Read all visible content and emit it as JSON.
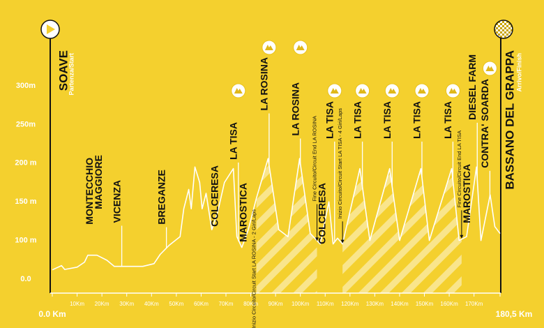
{
  "chart_data": {
    "type": "line",
    "color": "#ffffff",
    "x": [
      0,
      3.7,
      5,
      10,
      13,
      14.3,
      18,
      22,
      25,
      36.5,
      41,
      43.5,
      47,
      51.5,
      53,
      55,
      56,
      57.5,
      59.4,
      60.4,
      62,
      64.3,
      66.6,
      69.4,
      73,
      74.4,
      76.4,
      79,
      82.3,
      87,
      91.3,
      95,
      99.7,
      104,
      108,
      111.5,
      113.2,
      115,
      117,
      124,
      128,
      136,
      140,
      148.6,
      152,
      161,
      164,
      167,
      171,
      172.8,
      176.5,
      178.4,
      180.5
    ],
    "values": [
      24,
      35,
      25,
      31,
      44,
      62,
      62,
      49,
      33,
      33,
      40,
      64,
      87,
      105,
      141,
      166,
      141,
      195,
      175,
      141,
      161,
      114,
      136,
      175,
      193,
      105,
      82,
      114,
      155,
      206,
      114,
      105,
      206,
      109,
      91,
      150,
      91,
      103,
      91,
      193,
      100,
      193,
      100,
      193,
      100,
      193,
      100,
      105,
      195,
      100,
      159,
      118,
      109
    ],
    "xlim": [
      0,
      180.5
    ],
    "ylim": [
      0,
      330
    ],
    "yticks": [
      {
        "value": 0,
        "label": "0.0"
      },
      {
        "value": 100,
        "label": "100 m"
      },
      {
        "value": 150,
        "label": "150 m"
      },
      {
        "value": 200,
        "label": "200 m"
      },
      {
        "value": 250,
        "label": "250m"
      },
      {
        "value": 300,
        "label": "300m"
      }
    ],
    "xticks": [
      {
        "value": 0,
        "label": "0.0 Km"
      },
      {
        "value": 10,
        "label": "10Km"
      },
      {
        "value": 20,
        "label": "20Km"
      },
      {
        "value": 30,
        "label": "30Km"
      },
      {
        "value": 40,
        "label": "40Km"
      },
      {
        "value": 50,
        "label": "50Km"
      },
      {
        "value": 60,
        "label": "60Km"
      },
      {
        "value": 70,
        "label": "70Km"
      },
      {
        "value": 80,
        "label": "80Km"
      },
      {
        "value": 90,
        "label": "90Km"
      },
      {
        "value": 100,
        "label": "100Km"
      },
      {
        "value": 110,
        "label": "110Km"
      },
      {
        "value": 120,
        "label": "120Km"
      },
      {
        "value": 130,
        "label": "130Km"
      },
      {
        "value": 140,
        "label": "140Km"
      },
      {
        "value": 150,
        "label": "150Km"
      },
      {
        "value": 160,
        "label": "160Km"
      },
      {
        "value": 170,
        "label": "170Km"
      },
      {
        "value": 180.5,
        "label": "180,5 Km"
      }
    ],
    "start_label": "Partenza/Start",
    "finish_label": "Arrivo/Finish",
    "places": [
      {
        "label": "SOAVE",
        "km": 0
      },
      {
        "label": "MONTECCHIO MAGGIORE",
        "km": 18.5
      },
      {
        "label": "VICENZA",
        "km": 28
      },
      {
        "label": "BREGANZE",
        "km": 46
      },
      {
        "label": "COLCERESA",
        "km": 67.4
      },
      {
        "label": "LA TISA",
        "km": 75
      },
      {
        "label": "MAROSTICA",
        "km": 79
      },
      {
        "label": "Inizio Circuito/Circuit Start LA ROSINA - 2 Giri/Laps",
        "km": 82.3
      },
      {
        "label": "LA ROSINA",
        "km": 87.4
      },
      {
        "label": "LA ROSINA",
        "km": 100
      },
      {
        "label": "Fine Circuito/Circuit End LA ROSINA",
        "km": 106.7
      },
      {
        "label": "COLCERESA",
        "km": 110.7
      },
      {
        "label": "LA TISA",
        "km": 113.8
      },
      {
        "label": "Inizio Circuito/Circuit Start LA TISA - 4 Giri/Laps",
        "km": 117
      },
      {
        "label": "LA TISA",
        "km": 125
      },
      {
        "label": "LA TISA",
        "km": 137
      },
      {
        "label": "LA TISA",
        "km": 149
      },
      {
        "label": "LA TISA",
        "km": 161.5
      },
      {
        "label": "Fine Circuito/Circuit End LA TISA",
        "km": 165
      },
      {
        "label": "MAROSTICA",
        "km": 169
      },
      {
        "label": "DIESEL FARM",
        "km": 171.3
      },
      {
        "label": "CONTRA' SOARDA",
        "km": 176.4
      },
      {
        "label": "BASSANO DEL GRAPPA",
        "km": 180.5
      }
    ]
  }
}
